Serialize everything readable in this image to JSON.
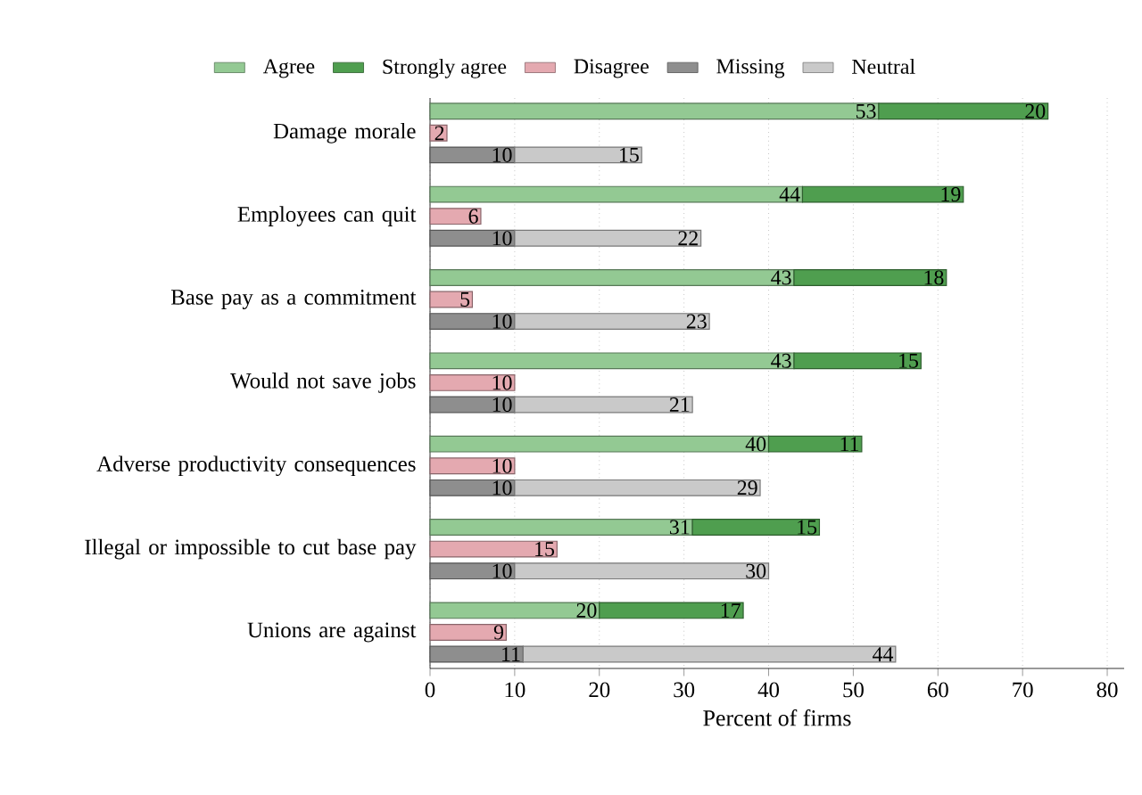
{
  "chart_data": {
    "type": "bar",
    "orientation": "horizontal",
    "stacked": true,
    "xlabel": "Percent of firms",
    "xlim": [
      0,
      82
    ],
    "xticks": [
      0,
      10,
      20,
      30,
      40,
      50,
      60,
      70,
      80
    ],
    "grid": "x",
    "legend": "top",
    "data_labels": true,
    "categories": [
      null,
      "Damage morale",
      null,
      null,
      "Employees can quit",
      null,
      null,
      "Base pay as a commitment",
      null,
      null,
      "Would not save jobs",
      null,
      null,
      "Adverse productivity consequences",
      null,
      null,
      "Illegal or impossible to cut base pay",
      null,
      null,
      "Unions are against",
      null
    ],
    "series": [
      {
        "name": "Agree",
        "color": "#93c993",
        "values": [
          53,
          null,
          null,
          44,
          null,
          null,
          43,
          null,
          null,
          43,
          null,
          null,
          40,
          null,
          null,
          31,
          null,
          null,
          20,
          null,
          null
        ]
      },
      {
        "name": "Strongly agree",
        "color": "#4f9e4f",
        "values": [
          20,
          null,
          null,
          19,
          null,
          null,
          18,
          null,
          null,
          15,
          null,
          null,
          11,
          null,
          null,
          15,
          null,
          null,
          17,
          null,
          null
        ]
      },
      {
        "name": "Disagree",
        "color": "#e4a9b0",
        "values": [
          null,
          2,
          null,
          null,
          6,
          null,
          null,
          5,
          null,
          null,
          10,
          null,
          null,
          10,
          null,
          null,
          15,
          null,
          null,
          9,
          null
        ]
      },
      {
        "name": "Missing",
        "color": "#8e8e8e",
        "values": [
          null,
          null,
          10,
          null,
          null,
          10,
          null,
          null,
          10,
          null,
          null,
          10,
          null,
          null,
          10,
          null,
          null,
          10,
          null,
          null,
          11
        ]
      },
      {
        "name": "Neutral",
        "color": "#c9c9c9",
        "values": [
          null,
          null,
          15,
          null,
          null,
          22,
          null,
          null,
          23,
          null,
          null,
          21,
          null,
          null,
          29,
          null,
          null,
          30,
          null,
          null,
          44
        ]
      }
    ]
  }
}
